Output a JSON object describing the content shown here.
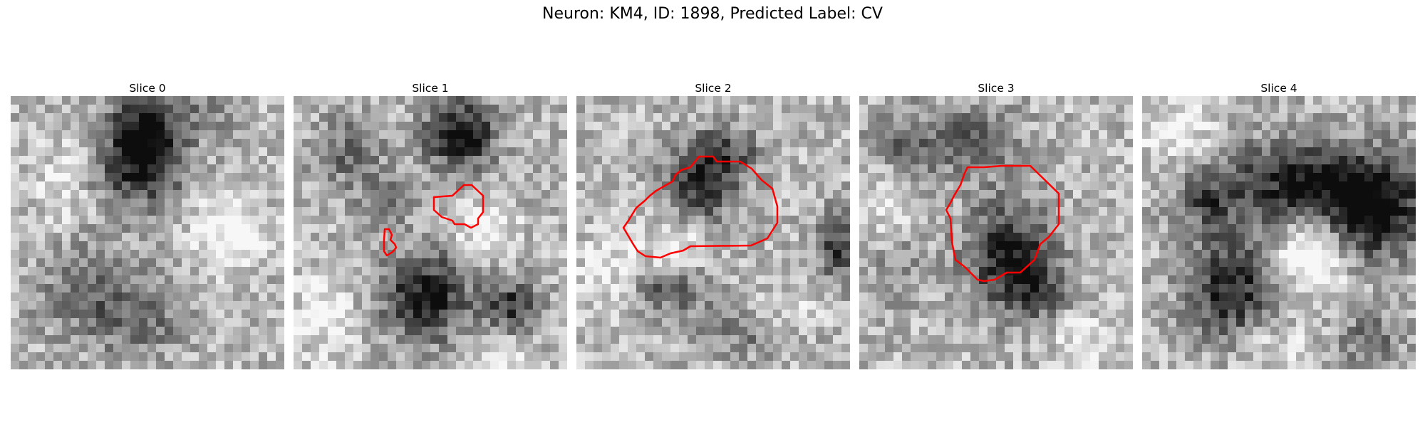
{
  "title": "Neuron: KM4, ID: 1898, Predicted Label: CV",
  "panels": [
    {
      "title": "Slice 0",
      "seed": 11,
      "has_contour": false
    },
    {
      "title": "Slice 1",
      "seed": 23,
      "has_contour": true
    },
    {
      "title": "Slice 2",
      "seed": 37,
      "has_contour": true
    },
    {
      "title": "Slice 3",
      "seed": 41,
      "has_contour": true
    },
    {
      "title": "Slice 4",
      "seed": 59,
      "has_contour": false
    }
  ],
  "colors": {
    "contour": "#ff0000",
    "background": "#ffffff"
  }
}
